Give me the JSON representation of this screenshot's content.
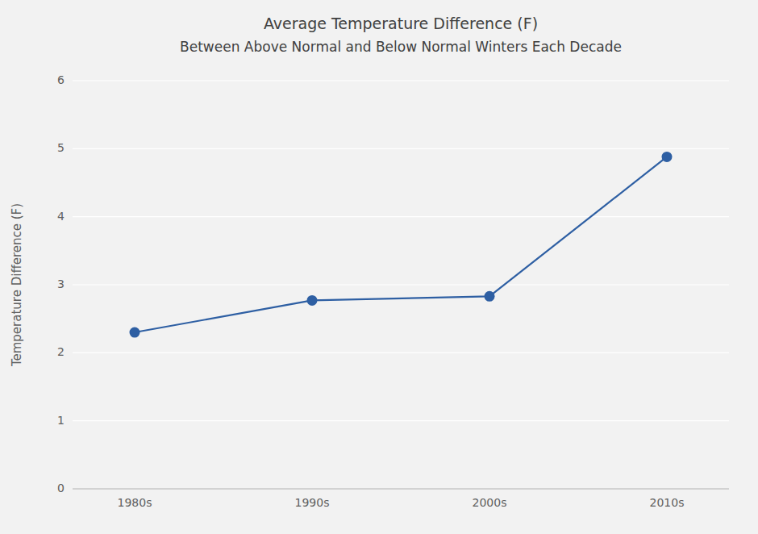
{
  "chart_data": {
    "type": "line",
    "title": "Average Temperature Difference (F)",
    "subtitle": "Between Above Normal and Below Normal Winters Each Decade",
    "y_label": "Temperature Difference (F)",
    "categories": [
      "1980s",
      "1990s",
      "2000s",
      "2010s"
    ],
    "values": [
      2.3,
      2.77,
      2.83,
      4.88
    ],
    "color": "#2E5FA3",
    "marker": "circle",
    "ylim": [
      0,
      6
    ],
    "yticks": [
      0,
      1,
      2,
      3,
      4,
      5,
      6
    ],
    "grid": true
  }
}
